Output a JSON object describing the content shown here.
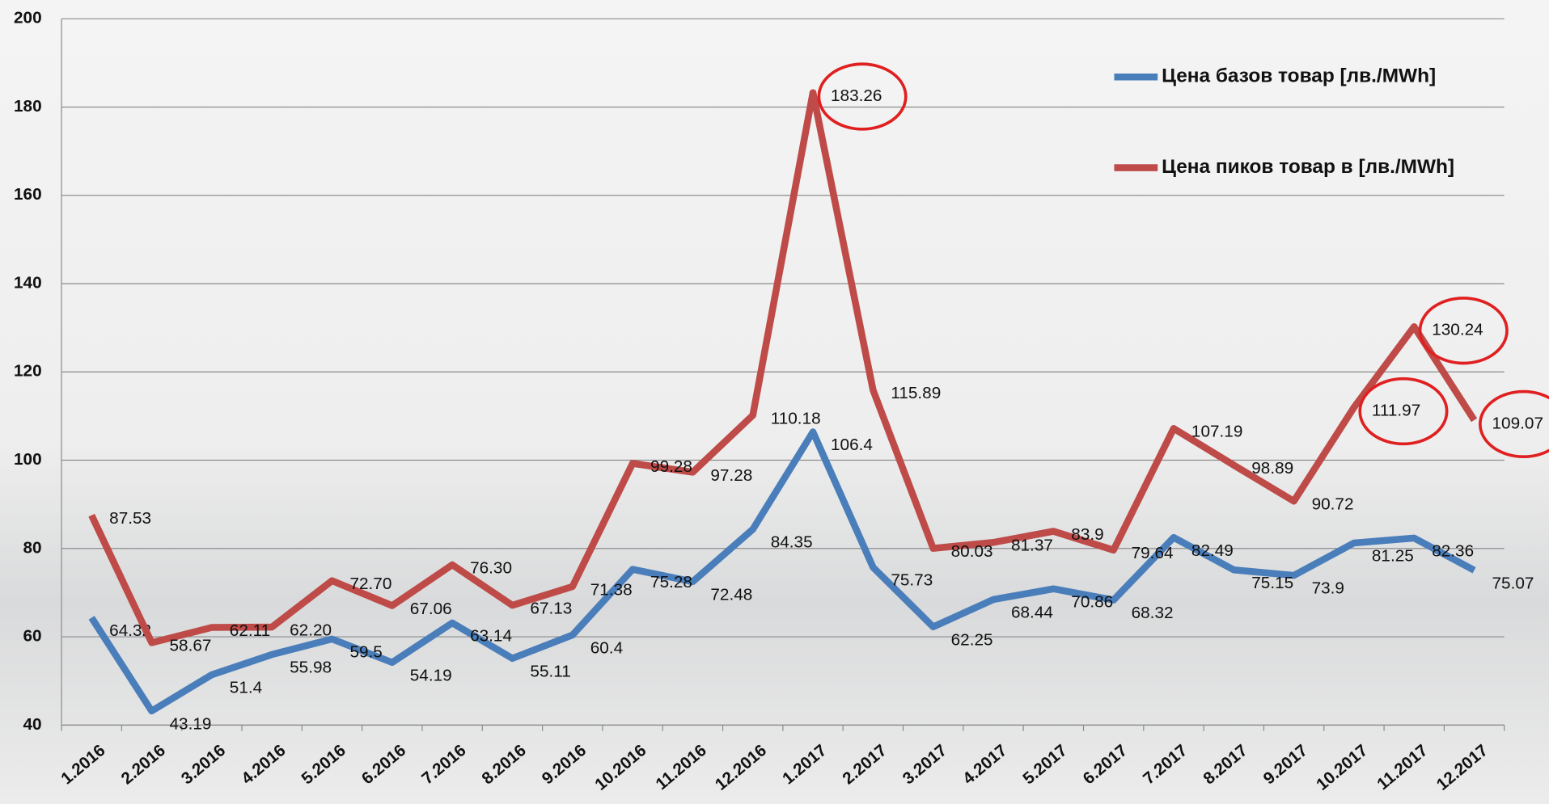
{
  "chart_data": {
    "type": "line",
    "categories": [
      "1.2016",
      "2.2016",
      "3.2016",
      "4.2016",
      "5.2016",
      "6.2016",
      "7.2016",
      "8.2016",
      "9.2016",
      "10.2016",
      "11.2016",
      "12.2016",
      "1.2017",
      "2.2017",
      "3.2017",
      "4.2017",
      "5.2017",
      "6.2017",
      "7.2017",
      "8.2017",
      "9.2017",
      "10.2017",
      "11.2017",
      "12.2017"
    ],
    "series": [
      {
        "name": "Цена базов товар [лв./MWh]",
        "color": "#4a7ebb",
        "values": [
          64.32,
          43.19,
          51.4,
          55.98,
          59.5,
          54.19,
          63.14,
          55.11,
          60.4,
          75.28,
          72.48,
          84.35,
          106.4,
          75.73,
          62.25,
          68.44,
          70.86,
          68.32,
          82.49,
          75.15,
          73.9,
          81.25,
          82.36,
          75.07
        ]
      },
      {
        "name": "Цена пиков товар в [лв./MWh]",
        "color": "#be4b48",
        "values": [
          87.53,
          58.67,
          62.11,
          62.2,
          72.7,
          67.06,
          76.3,
          67.13,
          71.38,
          99.28,
          97.28,
          110.18,
          183.26,
          115.89,
          80.03,
          81.37,
          83.9,
          79.64,
          107.19,
          98.89,
          90.72,
          111.97,
          130.24,
          109.07
        ],
        "value_labels": [
          "87.53",
          "58.67",
          "62.11",
          "62.20",
          "72.70",
          "67.06",
          "76.30",
          "67.13",
          "71.38",
          "99.28",
          "97.28",
          "110.18",
          "183.26",
          "115.89",
          "80.03",
          "81.37",
          "83.9",
          "79.64",
          "107.19",
          "98.89",
          "90.72",
          "111.97",
          "130.24",
          "109.07"
        ]
      }
    ],
    "ylim": [
      40,
      200
    ],
    "yticks": [
      40,
      60,
      80,
      100,
      120,
      140,
      160,
      180,
      200
    ],
    "grid": true,
    "legend": "top-right"
  }
}
